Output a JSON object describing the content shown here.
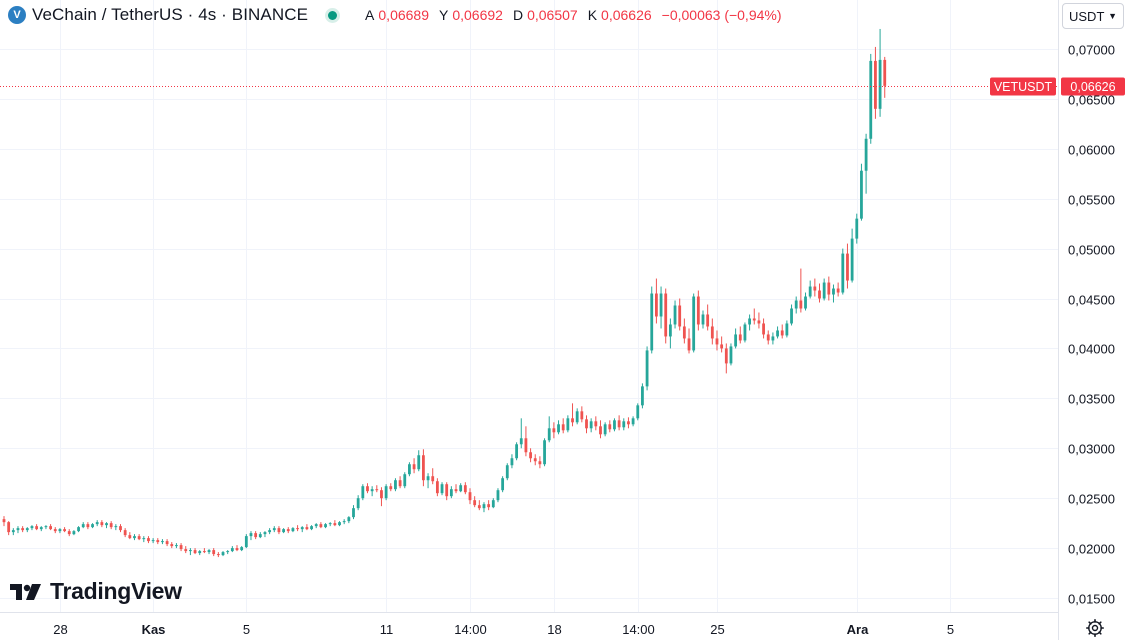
{
  "header": {
    "symbol_title": "VeChain / TetherUS · 4s · BINANCE",
    "ohlc": [
      {
        "key": "A",
        "value": "0,06689"
      },
      {
        "key": "Y",
        "value": "0,06692"
      },
      {
        "key": "D",
        "value": "0,06507"
      },
      {
        "key": "K",
        "value": "0,06626"
      }
    ],
    "change": "−0,00063 (−0,94%)",
    "colors": {
      "down": "#f23645",
      "up": "#089981"
    }
  },
  "currency_select": {
    "value": "USDT"
  },
  "price_label": {
    "symbol": "VETUSDT",
    "price": "0,06626",
    "value": 0.06626
  },
  "watermark": {
    "text": "TradingView"
  },
  "chart_data": {
    "type": "candlestick",
    "y_axis": {
      "min": 0.0136,
      "max": 0.0749,
      "ticks": [
        {
          "value": 0.015,
          "label": "0,01500"
        },
        {
          "value": 0.02,
          "label": "0,02000"
        },
        {
          "value": 0.025,
          "label": "0,02500"
        },
        {
          "value": 0.03,
          "label": "0,03000"
        },
        {
          "value": 0.035,
          "label": "0,03500"
        },
        {
          "value": 0.04,
          "label": "0,04000"
        },
        {
          "value": 0.045,
          "label": "0,04500"
        },
        {
          "value": 0.05,
          "label": "0,05000"
        },
        {
          "value": 0.055,
          "label": "0,05500"
        },
        {
          "value": 0.06,
          "label": "0,06000"
        },
        {
          "value": 0.065,
          "label": "0,06500"
        },
        {
          "value": 0.07,
          "label": "0,07000"
        }
      ]
    },
    "x_axis": {
      "ticks": [
        {
          "label": "28",
          "index": 12,
          "bold": false
        },
        {
          "label": "Kas",
          "index": 32,
          "bold": true
        },
        {
          "label": "5",
          "index": 52,
          "bold": false
        },
        {
          "label": "11",
          "index": 82,
          "bold": false
        },
        {
          "label": "14:00",
          "index": 100,
          "bold": false
        },
        {
          "label": "18",
          "index": 118,
          "bold": false
        },
        {
          "label": "14:00",
          "index": 136,
          "bold": false
        },
        {
          "label": "25",
          "index": 153,
          "bold": false
        },
        {
          "label": "Ara",
          "index": 183,
          "bold": true
        },
        {
          "label": "5",
          "index": 203,
          "bold": false
        }
      ]
    },
    "colors": {
      "up": "#26a69a",
      "down": "#ef5350"
    },
    "last_price": 0.06626,
    "candles": [
      [
        0.0229,
        0.0232,
        0.0222,
        0.0226
      ],
      [
        0.0226,
        0.0227,
        0.0213,
        0.0216
      ],
      [
        0.0216,
        0.022,
        0.0213,
        0.0218
      ],
      [
        0.0218,
        0.0222,
        0.0215,
        0.022
      ],
      [
        0.022,
        0.0222,
        0.0216,
        0.0218
      ],
      [
        0.0218,
        0.0221,
        0.0216,
        0.022
      ],
      [
        0.022,
        0.0223,
        0.0218,
        0.0222
      ],
      [
        0.0222,
        0.0224,
        0.0218,
        0.0219
      ],
      [
        0.0219,
        0.0222,
        0.0217,
        0.0221
      ],
      [
        0.0221,
        0.0223,
        0.0219,
        0.0222
      ],
      [
        0.0222,
        0.0224,
        0.0218,
        0.0219
      ],
      [
        0.0219,
        0.0221,
        0.0215,
        0.0217
      ],
      [
        0.0217,
        0.022,
        0.0215,
        0.0219
      ],
      [
        0.0219,
        0.0221,
        0.0216,
        0.0217
      ],
      [
        0.0217,
        0.0219,
        0.0212,
        0.0214
      ],
      [
        0.0214,
        0.0218,
        0.0213,
        0.0217
      ],
      [
        0.0217,
        0.0222,
        0.0216,
        0.0221
      ],
      [
        0.0221,
        0.0226,
        0.022,
        0.0224
      ],
      [
        0.0224,
        0.0226,
        0.0219,
        0.0221
      ],
      [
        0.0221,
        0.0225,
        0.022,
        0.0224
      ],
      [
        0.0224,
        0.0228,
        0.0222,
        0.0226
      ],
      [
        0.0226,
        0.0228,
        0.0221,
        0.0223
      ],
      [
        0.0223,
        0.0226,
        0.022,
        0.0225
      ],
      [
        0.0225,
        0.0227,
        0.0219,
        0.0221
      ],
      [
        0.0221,
        0.0224,
        0.0218,
        0.0222
      ],
      [
        0.0222,
        0.0224,
        0.0216,
        0.0218
      ],
      [
        0.0218,
        0.022,
        0.0211,
        0.0213
      ],
      [
        0.0213,
        0.0216,
        0.0209,
        0.021
      ],
      [
        0.021,
        0.0214,
        0.0208,
        0.0212
      ],
      [
        0.0212,
        0.0214,
        0.0208,
        0.0209
      ],
      [
        0.0209,
        0.0212,
        0.0206,
        0.021
      ],
      [
        0.021,
        0.0212,
        0.0205,
        0.0207
      ],
      [
        0.0207,
        0.021,
        0.0205,
        0.0208
      ],
      [
        0.0208,
        0.021,
        0.0204,
        0.0206
      ],
      [
        0.0206,
        0.0209,
        0.0204,
        0.0207
      ],
      [
        0.0207,
        0.0209,
        0.0202,
        0.0204
      ],
      [
        0.0204,
        0.0206,
        0.02,
        0.0202
      ],
      [
        0.0202,
        0.0205,
        0.02,
        0.0203
      ],
      [
        0.0203,
        0.0205,
        0.0197,
        0.0199
      ],
      [
        0.0199,
        0.0202,
        0.0195,
        0.0197
      ],
      [
        0.0197,
        0.02,
        0.0193,
        0.0198
      ],
      [
        0.0198,
        0.02,
        0.0194,
        0.0195
      ],
      [
        0.0195,
        0.0198,
        0.0193,
        0.0197
      ],
      [
        0.0197,
        0.02,
        0.0195,
        0.0196
      ],
      [
        0.0196,
        0.0199,
        0.0194,
        0.0198
      ],
      [
        0.0198,
        0.02,
        0.0192,
        0.0194
      ],
      [
        0.0194,
        0.0196,
        0.0191,
        0.0193
      ],
      [
        0.0193,
        0.0197,
        0.0192,
        0.0196
      ],
      [
        0.0196,
        0.0198,
        0.0194,
        0.0197
      ],
      [
        0.0197,
        0.0202,
        0.0196,
        0.02
      ],
      [
        0.02,
        0.0203,
        0.0197,
        0.0198
      ],
      [
        0.0198,
        0.0202,
        0.0197,
        0.0201
      ],
      [
        0.0201,
        0.0214,
        0.02,
        0.0212
      ],
      [
        0.0212,
        0.0217,
        0.0208,
        0.0215
      ],
      [
        0.0215,
        0.0217,
        0.0209,
        0.0211
      ],
      [
        0.0211,
        0.0216,
        0.021,
        0.0214
      ],
      [
        0.0214,
        0.0217,
        0.0211,
        0.0216
      ],
      [
        0.0216,
        0.022,
        0.0214,
        0.0218
      ],
      [
        0.0218,
        0.0222,
        0.0216,
        0.022
      ],
      [
        0.022,
        0.0222,
        0.0214,
        0.0216
      ],
      [
        0.0216,
        0.022,
        0.0215,
        0.0219
      ],
      [
        0.0219,
        0.0221,
        0.0215,
        0.0217
      ],
      [
        0.0217,
        0.0221,
        0.0216,
        0.022
      ],
      [
        0.022,
        0.0223,
        0.0217,
        0.0219
      ],
      [
        0.0219,
        0.0222,
        0.0216,
        0.0221
      ],
      [
        0.0221,
        0.0224,
        0.0218,
        0.0219
      ],
      [
        0.0219,
        0.0223,
        0.0218,
        0.0222
      ],
      [
        0.0222,
        0.0225,
        0.022,
        0.0224
      ],
      [
        0.0224,
        0.0226,
        0.022,
        0.0221
      ],
      [
        0.0221,
        0.0225,
        0.022,
        0.0224
      ],
      [
        0.0224,
        0.0226,
        0.0222,
        0.0225
      ],
      [
        0.0225,
        0.0228,
        0.0222,
        0.0223
      ],
      [
        0.0223,
        0.0227,
        0.0222,
        0.0226
      ],
      [
        0.0226,
        0.0229,
        0.0224,
        0.0227
      ],
      [
        0.0227,
        0.0232,
        0.0225,
        0.0231
      ],
      [
        0.0231,
        0.0243,
        0.0229,
        0.024
      ],
      [
        0.024,
        0.0253,
        0.0238,
        0.025
      ],
      [
        0.025,
        0.0264,
        0.0248,
        0.0262
      ],
      [
        0.0262,
        0.0265,
        0.0255,
        0.0257
      ],
      [
        0.0257,
        0.0262,
        0.0252,
        0.0259
      ],
      [
        0.0259,
        0.0263,
        0.0256,
        0.0258
      ],
      [
        0.0258,
        0.0261,
        0.0242,
        0.025
      ],
      [
        0.025,
        0.0264,
        0.0248,
        0.0262
      ],
      [
        0.0262,
        0.0265,
        0.0257,
        0.0259
      ],
      [
        0.0259,
        0.027,
        0.0257,
        0.0268
      ],
      [
        0.0268,
        0.0272,
        0.026,
        0.0262
      ],
      [
        0.0262,
        0.0276,
        0.026,
        0.0274
      ],
      [
        0.0274,
        0.0286,
        0.0272,
        0.0284
      ],
      [
        0.0284,
        0.029,
        0.0275,
        0.0279
      ],
      [
        0.0279,
        0.0298,
        0.0277,
        0.0293
      ],
      [
        0.0293,
        0.0299,
        0.0262,
        0.0268
      ],
      [
        0.0268,
        0.0275,
        0.026,
        0.0272
      ],
      [
        0.0272,
        0.028,
        0.0264,
        0.0267
      ],
      [
        0.0267,
        0.027,
        0.0252,
        0.0255
      ],
      [
        0.0255,
        0.0266,
        0.0253,
        0.0264
      ],
      [
        0.0264,
        0.0266,
        0.0248,
        0.0252
      ],
      [
        0.0252,
        0.0262,
        0.025,
        0.0259
      ],
      [
        0.0259,
        0.0264,
        0.0255,
        0.0257
      ],
      [
        0.0257,
        0.0265,
        0.0256,
        0.0263
      ],
      [
        0.0263,
        0.0266,
        0.0254,
        0.0256
      ],
      [
        0.0256,
        0.026,
        0.0244,
        0.0248
      ],
      [
        0.0248,
        0.0252,
        0.0241,
        0.0243
      ],
      [
        0.0243,
        0.0248,
        0.0238,
        0.024
      ],
      [
        0.024,
        0.0246,
        0.0236,
        0.0244
      ],
      [
        0.0244,
        0.0248,
        0.0238,
        0.0241
      ],
      [
        0.0241,
        0.025,
        0.024,
        0.0248
      ],
      [
        0.0248,
        0.026,
        0.0246,
        0.0258
      ],
      [
        0.0258,
        0.0272,
        0.0256,
        0.027
      ],
      [
        0.027,
        0.0285,
        0.0268,
        0.0283
      ],
      [
        0.0283,
        0.0294,
        0.028,
        0.029
      ],
      [
        0.029,
        0.0306,
        0.0288,
        0.0304
      ],
      [
        0.0304,
        0.033,
        0.03,
        0.031
      ],
      [
        0.031,
        0.0322,
        0.0292,
        0.0296
      ],
      [
        0.0296,
        0.03,
        0.0286,
        0.029
      ],
      [
        0.029,
        0.0294,
        0.0283,
        0.0287
      ],
      [
        0.0287,
        0.0292,
        0.028,
        0.0284
      ],
      [
        0.0284,
        0.031,
        0.0282,
        0.0308
      ],
      [
        0.0308,
        0.0332,
        0.0306,
        0.032
      ],
      [
        0.032,
        0.0326,
        0.031,
        0.0316
      ],
      [
        0.0316,
        0.0328,
        0.0314,
        0.0324
      ],
      [
        0.0324,
        0.033,
        0.0315,
        0.0318
      ],
      [
        0.0318,
        0.0333,
        0.0316,
        0.033
      ],
      [
        0.033,
        0.0345,
        0.0322,
        0.0326
      ],
      [
        0.0326,
        0.034,
        0.0324,
        0.0337
      ],
      [
        0.0337,
        0.0342,
        0.0326,
        0.0329
      ],
      [
        0.0329,
        0.0333,
        0.0315,
        0.032
      ],
      [
        0.032,
        0.033,
        0.0316,
        0.0327
      ],
      [
        0.0327,
        0.0332,
        0.0318,
        0.0322
      ],
      [
        0.0322,
        0.0328,
        0.031,
        0.0314
      ],
      [
        0.0314,
        0.0326,
        0.0312,
        0.0324
      ],
      [
        0.0324,
        0.0328,
        0.0316,
        0.0319
      ],
      [
        0.0319,
        0.033,
        0.0317,
        0.0328
      ],
      [
        0.0328,
        0.0333,
        0.0318,
        0.0321
      ],
      [
        0.0321,
        0.033,
        0.0318,
        0.0327
      ],
      [
        0.0327,
        0.0331,
        0.032,
        0.0324
      ],
      [
        0.0324,
        0.0332,
        0.0322,
        0.033
      ],
      [
        0.033,
        0.0345,
        0.0328,
        0.0343
      ],
      [
        0.0343,
        0.0365,
        0.034,
        0.0362
      ],
      [
        0.0362,
        0.0402,
        0.0358,
        0.0398
      ],
      [
        0.0398,
        0.0462,
        0.0395,
        0.0455
      ],
      [
        0.0455,
        0.047,
        0.0425,
        0.0432
      ],
      [
        0.0432,
        0.0462,
        0.042,
        0.0455
      ],
      [
        0.0455,
        0.046,
        0.0405,
        0.0412
      ],
      [
        0.0412,
        0.043,
        0.04,
        0.0424
      ],
      [
        0.0424,
        0.0448,
        0.042,
        0.0443
      ],
      [
        0.0443,
        0.045,
        0.0418,
        0.0422
      ],
      [
        0.0422,
        0.043,
        0.0405,
        0.041
      ],
      [
        0.041,
        0.042,
        0.0395,
        0.0398
      ],
      [
        0.0398,
        0.0455,
        0.0396,
        0.0452
      ],
      [
        0.0452,
        0.0458,
        0.0418,
        0.0424
      ],
      [
        0.0424,
        0.0438,
        0.042,
        0.0434
      ],
      [
        0.0434,
        0.0444,
        0.0418,
        0.0422
      ],
      [
        0.0422,
        0.043,
        0.0404,
        0.041
      ],
      [
        0.041,
        0.0418,
        0.0398,
        0.0404
      ],
      [
        0.0404,
        0.0412,
        0.0396,
        0.04
      ],
      [
        0.04,
        0.0405,
        0.0375,
        0.0385
      ],
      [
        0.0385,
        0.0405,
        0.0383,
        0.0402
      ],
      [
        0.0402,
        0.042,
        0.04,
        0.0414
      ],
      [
        0.0414,
        0.0422,
        0.0405,
        0.0408
      ],
      [
        0.0408,
        0.0426,
        0.0406,
        0.0424
      ],
      [
        0.0424,
        0.0434,
        0.0418,
        0.043
      ],
      [
        0.043,
        0.044,
        0.0424,
        0.0428
      ],
      [
        0.0428,
        0.0436,
        0.042,
        0.0425
      ],
      [
        0.0425,
        0.043,
        0.041,
        0.0414
      ],
      [
        0.0414,
        0.0418,
        0.0404,
        0.0408
      ],
      [
        0.0408,
        0.0416,
        0.0404,
        0.0412
      ],
      [
        0.0412,
        0.0422,
        0.041,
        0.0418
      ],
      [
        0.0418,
        0.0424,
        0.041,
        0.0413
      ],
      [
        0.0413,
        0.0428,
        0.0411,
        0.0425
      ],
      [
        0.0425,
        0.0444,
        0.0423,
        0.044
      ],
      [
        0.044,
        0.0452,
        0.0435,
        0.0448
      ],
      [
        0.0448,
        0.048,
        0.0436,
        0.044
      ],
      [
        0.044,
        0.0456,
        0.0438,
        0.0452
      ],
      [
        0.0452,
        0.0468,
        0.045,
        0.0462
      ],
      [
        0.0462,
        0.047,
        0.0452,
        0.0458
      ],
      [
        0.0458,
        0.0465,
        0.0446,
        0.045
      ],
      [
        0.045,
        0.047,
        0.0448,
        0.0466
      ],
      [
        0.0466,
        0.0472,
        0.0448,
        0.0454
      ],
      [
        0.0454,
        0.0464,
        0.0446,
        0.046
      ],
      [
        0.046,
        0.0466,
        0.0452,
        0.0456
      ],
      [
        0.0456,
        0.05,
        0.0454,
        0.0495
      ],
      [
        0.0495,
        0.0505,
        0.046,
        0.0468
      ],
      [
        0.0468,
        0.052,
        0.0466,
        0.051
      ],
      [
        0.051,
        0.0535,
        0.0505,
        0.053
      ],
      [
        0.053,
        0.0585,
        0.0528,
        0.0578
      ],
      [
        0.0578,
        0.0615,
        0.0555,
        0.061
      ],
      [
        0.061,
        0.0695,
        0.0605,
        0.0688
      ],
      [
        0.0688,
        0.0702,
        0.063,
        0.064
      ],
      [
        0.064,
        0.072,
        0.0632,
        0.0689
      ],
      [
        0.0689,
        0.0692,
        0.0651,
        0.0663
      ]
    ]
  }
}
